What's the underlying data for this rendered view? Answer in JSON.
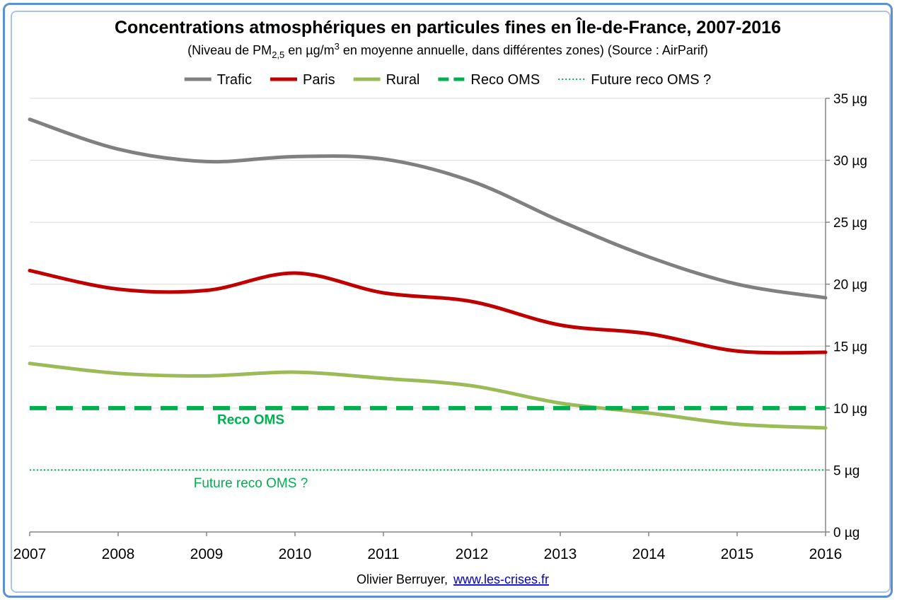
{
  "chart_data": {
    "type": "line",
    "title": "Concentrations atmosphériques en particules fines en Île-de-France, 2007-2016",
    "subtitle": {
      "prefix": "(Niveau de PM",
      "sub": "2,5",
      "middle": " en µg/m",
      "sup": "3",
      "suffix": " en moyenne annuelle, dans différentes zones) (Source : AirParif)"
    },
    "x": [
      2007,
      2008,
      2009,
      2010,
      2011,
      2012,
      2013,
      2014,
      2015,
      2016
    ],
    "x_tick_labels": [
      "2007",
      "2008",
      "2009",
      "2010",
      "2011",
      "2012",
      "2013",
      "2014",
      "2015",
      "2016"
    ],
    "y_ticks": [
      0,
      5,
      10,
      15,
      20,
      25,
      30,
      35
    ],
    "y_tick_labels": [
      "0 µg",
      "5 µg",
      "10 µg",
      "15 µg",
      "20 µg",
      "25 µg",
      "30 µg",
      "35 µg"
    ],
    "ylim": [
      0,
      35
    ],
    "y_axis_side": "right",
    "grid": "horizontal",
    "legend_position": "top",
    "series": [
      {
        "name": "Trafic",
        "color": "#808080",
        "style": "solid",
        "values": [
          33.3,
          30.9,
          29.9,
          30.3,
          30.1,
          28.3,
          25.1,
          22.2,
          20.0,
          18.9
        ]
      },
      {
        "name": "Paris",
        "color": "#c00000",
        "style": "solid",
        "values": [
          21.1,
          19.6,
          19.5,
          20.9,
          19.3,
          18.6,
          16.7,
          16.0,
          14.6,
          14.5
        ]
      },
      {
        "name": "Rural",
        "color": "#9bbb59",
        "style": "solid",
        "values": [
          13.6,
          12.8,
          12.6,
          12.9,
          12.4,
          11.8,
          10.4,
          9.6,
          8.7,
          8.4
        ]
      },
      {
        "name": "Reco OMS",
        "color": "#00b050",
        "style": "dashed",
        "values": [
          10,
          10,
          10,
          10,
          10,
          10,
          10,
          10,
          10,
          10
        ]
      },
      {
        "name": "Future reco OMS ?",
        "color": "#00b050",
        "style": "dotted",
        "values": [
          5,
          5,
          5,
          5,
          5,
          5,
          5,
          5,
          5,
          5
        ]
      }
    ],
    "annotations": [
      {
        "text": "Reco OMS",
        "x": 2009.5,
        "y": 8.7,
        "color": "#00b050",
        "weight": "bold"
      },
      {
        "text": "Future reco OMS ?",
        "x": 2009.5,
        "y": 3.6,
        "color": "#00b050",
        "weight": "normal"
      }
    ]
  },
  "credit": {
    "author": "Olivier Berruyer,",
    "link": "www.les-crises.fr"
  }
}
